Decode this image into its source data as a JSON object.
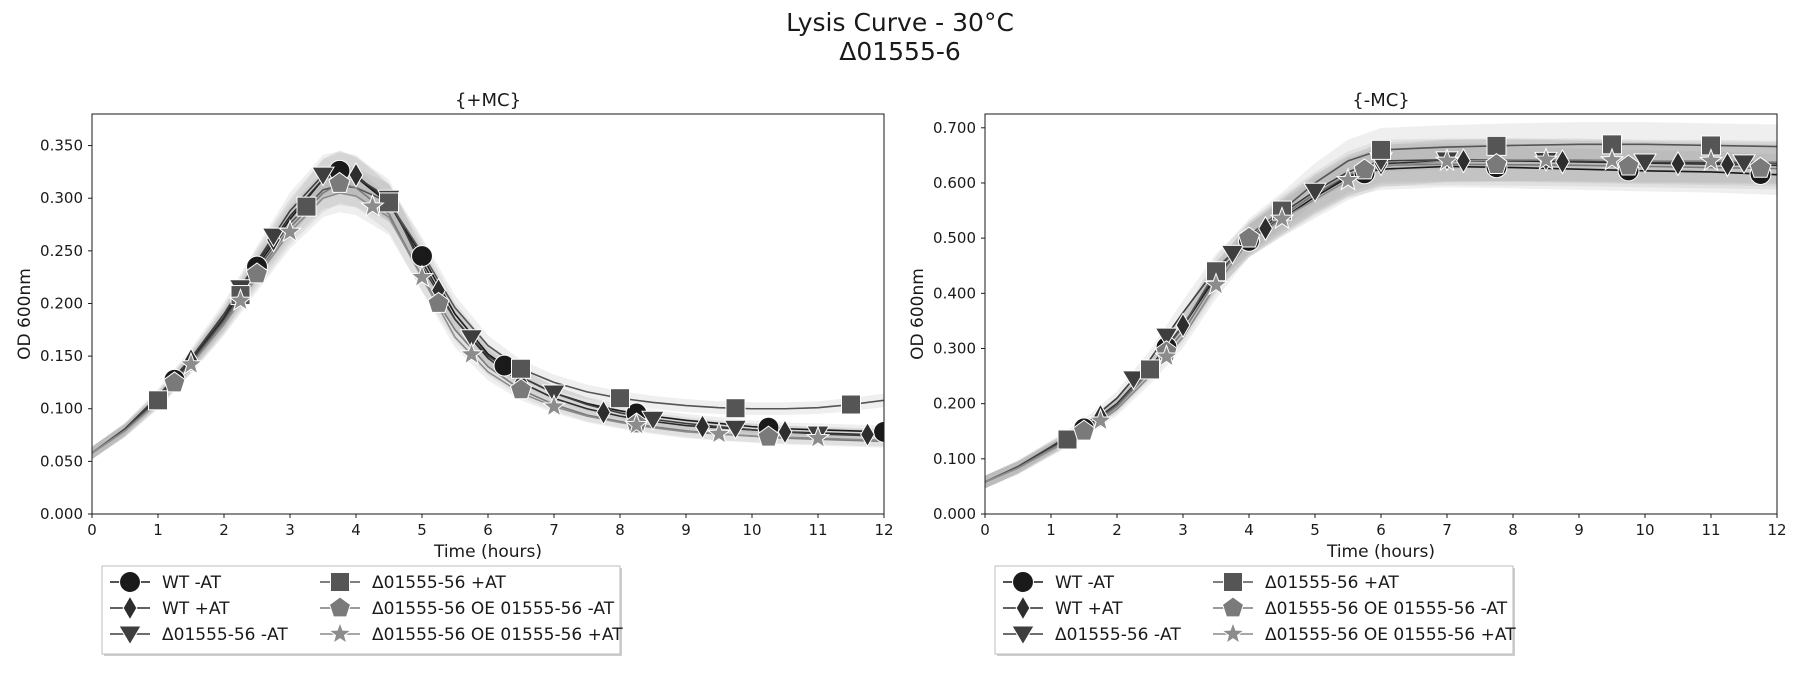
{
  "figure": {
    "title_line1": "Lysis Curve - 30°C",
    "title_line2": "Δ01555-6"
  },
  "chart_data": [
    {
      "type": "line",
      "title": "{+MC}",
      "xlabel": "Time (hours)",
      "ylabel": "OD 600nm",
      "xlim": [
        0,
        12
      ],
      "ylim": [
        0,
        0.38
      ],
      "xticks": [
        "0",
        "1",
        "2",
        "3",
        "4",
        "5",
        "6",
        "7",
        "8",
        "9",
        "10",
        "11",
        "12"
      ],
      "yticks": [
        "0.000",
        "0.050",
        "0.100",
        "0.150",
        "0.200",
        "0.250",
        "0.300",
        "0.350"
      ],
      "grid": false,
      "legend_position": "below-left",
      "series": [
        {
          "name": "WT -AT",
          "marker": "circle",
          "color": "#1a1a1a",
          "x": [
            0,
            0.5,
            1,
            1.5,
            2,
            2.5,
            3,
            3.5,
            3.75,
            4,
            4.5,
            5,
            5.5,
            6,
            6.5,
            7,
            7.5,
            8,
            8.5,
            9,
            9.5,
            10,
            10.5,
            11,
            11.5,
            12
          ],
          "y": [
            0.058,
            0.08,
            0.11,
            0.145,
            0.185,
            0.235,
            0.28,
            0.318,
            0.326,
            0.32,
            0.295,
            0.245,
            0.19,
            0.152,
            0.13,
            0.115,
            0.105,
            0.098,
            0.093,
            0.089,
            0.086,
            0.083,
            0.081,
            0.08,
            0.079,
            0.078
          ],
          "marker_x": [
            1.25,
            2.5,
            3.75,
            5,
            6.25,
            8.25,
            10.25,
            12
          ]
        },
        {
          "name": "WT +AT",
          "marker": "diamond",
          "color": "#2d2d2d",
          "x": [
            0,
            0.5,
            1,
            1.5,
            2,
            2.5,
            3,
            3.5,
            3.75,
            4,
            4.5,
            5,
            5.5,
            6,
            6.5,
            7,
            7.5,
            8,
            8.5,
            9,
            9.5,
            10,
            10.5,
            11,
            11.5,
            12
          ],
          "y": [
            0.058,
            0.08,
            0.11,
            0.146,
            0.187,
            0.238,
            0.283,
            0.318,
            0.324,
            0.322,
            0.296,
            0.24,
            0.185,
            0.148,
            0.125,
            0.11,
            0.1,
            0.093,
            0.088,
            0.084,
            0.082,
            0.08,
            0.078,
            0.077,
            0.076,
            0.075
          ],
          "marker_x": [
            1.5,
            2.75,
            4,
            5.25,
            6.5,
            7.75,
            9.25,
            10.5,
            11.75
          ]
        },
        {
          "name": "Δ01555-56 -AT",
          "marker": "triangle-down",
          "color": "#3e3e3e",
          "x": [
            0,
            0.5,
            1,
            1.5,
            2,
            2.5,
            3,
            3.5,
            3.75,
            4,
            4.5,
            5,
            5.5,
            6,
            6.5,
            7,
            7.5,
            8,
            8.5,
            9,
            9.5,
            10,
            10.5,
            11,
            11.5,
            12
          ],
          "y": [
            0.058,
            0.081,
            0.112,
            0.148,
            0.19,
            0.24,
            0.288,
            0.322,
            0.325,
            0.32,
            0.3,
            0.235,
            0.185,
            0.15,
            0.13,
            0.115,
            0.104,
            0.096,
            0.09,
            0.086,
            0.083,
            0.08,
            0.078,
            0.076,
            0.075,
            0.074
          ],
          "marker_x": [
            2.25,
            2.75,
            3.5,
            4.5,
            5.75,
            7,
            8.5,
            9.75,
            11
          ]
        },
        {
          "name": "Δ01555-56 +AT",
          "marker": "square",
          "color": "#555555",
          "x": [
            0,
            0.5,
            1,
            1.5,
            2,
            2.5,
            3,
            3.5,
            3.75,
            4,
            4.5,
            5,
            5.5,
            6,
            6.5,
            7,
            7.5,
            8,
            8.5,
            9,
            9.5,
            10,
            10.5,
            11,
            11.5,
            12
          ],
          "y": [
            0.058,
            0.08,
            0.108,
            0.144,
            0.184,
            0.232,
            0.276,
            0.308,
            0.312,
            0.31,
            0.296,
            0.248,
            0.196,
            0.16,
            0.138,
            0.125,
            0.116,
            0.11,
            0.106,
            0.103,
            0.101,
            0.1,
            0.1,
            0.101,
            0.104,
            0.108
          ],
          "marker_x": [
            1,
            2.25,
            3.25,
            4.5,
            6.5,
            8,
            9.75,
            11.5
          ]
        },
        {
          "name": "Δ01555-56 OE 01555-56 -AT",
          "marker": "pentagon",
          "color": "#7a7a7a",
          "x": [
            0,
            0.5,
            1,
            1.5,
            2,
            2.5,
            3,
            3.5,
            3.75,
            4,
            4.5,
            5,
            5.5,
            6,
            6.5,
            7,
            7.5,
            8,
            8.5,
            9,
            9.5,
            10,
            10.5,
            11,
            11.5,
            12
          ],
          "y": [
            0.058,
            0.079,
            0.107,
            0.142,
            0.182,
            0.228,
            0.272,
            0.305,
            0.314,
            0.31,
            0.285,
            0.225,
            0.175,
            0.14,
            0.118,
            0.104,
            0.094,
            0.088,
            0.083,
            0.079,
            0.076,
            0.074,
            0.072,
            0.071,
            0.07,
            0.069
          ],
          "marker_x": [
            1.25,
            2.5,
            3.75,
            5.25,
            6.5,
            8.25,
            10.25
          ]
        },
        {
          "name": "Δ01555-56 OE 01555-56 +AT",
          "marker": "star",
          "color": "#8c8c8c",
          "x": [
            0,
            0.5,
            1,
            1.5,
            2,
            2.5,
            3,
            3.5,
            3.75,
            4,
            4.5,
            5,
            5.5,
            6,
            6.5,
            7,
            7.5,
            8,
            8.5,
            9,
            9.5,
            10,
            10.5,
            11,
            11.5,
            12
          ],
          "y": [
            0.058,
            0.079,
            0.106,
            0.142,
            0.18,
            0.225,
            0.268,
            0.3,
            0.305,
            0.302,
            0.282,
            0.225,
            0.168,
            0.135,
            0.115,
            0.102,
            0.093,
            0.087,
            0.082,
            0.078,
            0.076,
            0.074,
            0.073,
            0.072,
            0.071,
            0.07
          ],
          "marker_x": [
            1.5,
            2.25,
            3,
            4.25,
            5,
            5.75,
            7,
            8.25,
            9.5,
            11
          ]
        }
      ]
    },
    {
      "type": "line",
      "title": "{-MC}",
      "xlabel": "Time (hours)",
      "ylabel": "OD 600nm",
      "xlim": [
        0,
        12
      ],
      "ylim": [
        0,
        0.725
      ],
      "xticks": [
        "0",
        "1",
        "2",
        "3",
        "4",
        "5",
        "6",
        "7",
        "8",
        "9",
        "10",
        "11",
        "12"
      ],
      "yticks": [
        "0.000",
        "0.100",
        "0.200",
        "0.300",
        "0.400",
        "0.500",
        "0.600",
        "0.700"
      ],
      "grid": false,
      "legend_position": "below-left",
      "series": [
        {
          "name": "WT -AT",
          "marker": "circle",
          "color": "#1a1a1a",
          "x": [
            0,
            0.5,
            1,
            1.5,
            2,
            2.5,
            3,
            3.5,
            4,
            4.5,
            5,
            5.5,
            6,
            7,
            8,
            9,
            10,
            11,
            12
          ],
          "y": [
            0.058,
            0.085,
            0.12,
            0.155,
            0.2,
            0.265,
            0.34,
            0.43,
            0.495,
            0.535,
            0.575,
            0.61,
            0.625,
            0.63,
            0.628,
            0.625,
            0.622,
            0.62,
            0.615
          ],
          "marker_x": [
            1.5,
            2.75,
            4,
            5.75,
            7.75,
            9.75,
            11.75
          ]
        },
        {
          "name": "WT +AT",
          "marker": "diamond",
          "color": "#2d2d2d",
          "x": [
            0,
            0.5,
            1,
            1.5,
            2,
            2.5,
            3,
            3.5,
            4,
            4.5,
            5,
            5.5,
            6,
            7,
            8,
            9,
            10,
            11,
            12
          ],
          "y": [
            0.058,
            0.085,
            0.12,
            0.155,
            0.2,
            0.265,
            0.342,
            0.432,
            0.495,
            0.54,
            0.58,
            0.612,
            0.635,
            0.64,
            0.64,
            0.638,
            0.636,
            0.634,
            0.632
          ],
          "marker_x": [
            1.75,
            3,
            4.25,
            6,
            7.25,
            8.75,
            10.5,
            11.25
          ]
        },
        {
          "name": "Δ01555-56 -AT",
          "marker": "triangle-down",
          "color": "#3e3e3e",
          "x": [
            0,
            0.5,
            1,
            1.5,
            2,
            2.5,
            3,
            3.5,
            4,
            4.5,
            5,
            5.5,
            6,
            7,
            8,
            9,
            10,
            11,
            12
          ],
          "y": [
            0.058,
            0.086,
            0.122,
            0.16,
            0.21,
            0.28,
            0.365,
            0.445,
            0.5,
            0.545,
            0.585,
            0.62,
            0.64,
            0.642,
            0.642,
            0.64,
            0.638,
            0.637,
            0.636
          ],
          "marker_x": [
            2.25,
            2.75,
            3.75,
            5,
            6,
            7,
            8.5,
            10,
            11.5
          ]
        },
        {
          "name": "Δ01555-56 +AT",
          "marker": "square",
          "color": "#555555",
          "x": [
            0,
            0.5,
            1,
            1.5,
            2,
            2.5,
            3,
            3.5,
            4,
            4.5,
            5,
            5.5,
            6,
            7,
            8,
            9,
            10,
            11,
            12
          ],
          "y": [
            0.058,
            0.084,
            0.118,
            0.152,
            0.198,
            0.262,
            0.34,
            0.44,
            0.505,
            0.55,
            0.6,
            0.64,
            0.66,
            0.665,
            0.668,
            0.67,
            0.67,
            0.668,
            0.666
          ],
          "marker_x": [
            1.25,
            2.5,
            3.5,
            4.5,
            6,
            7.75,
            9.5,
            11
          ]
        },
        {
          "name": "Δ01555-56 OE 01555-56 -AT",
          "marker": "pentagon",
          "color": "#7a7a7a",
          "x": [
            0,
            0.5,
            1,
            1.5,
            2,
            2.5,
            3,
            3.5,
            4,
            4.5,
            5,
            5.5,
            6,
            7,
            8,
            9,
            10,
            11,
            12
          ],
          "y": [
            0.058,
            0.084,
            0.118,
            0.15,
            0.195,
            0.258,
            0.33,
            0.425,
            0.5,
            0.54,
            0.58,
            0.615,
            0.632,
            0.634,
            0.633,
            0.632,
            0.63,
            0.628,
            0.626
          ],
          "marker_x": [
            1.5,
            2.75,
            4,
            5.75,
            7.75,
            9.75,
            11.75
          ]
        },
        {
          "name": "Δ01555-56 OE 01555-56 +AT",
          "marker": "star",
          "color": "#8c8c8c",
          "x": [
            0,
            0.5,
            1,
            1.5,
            2,
            2.5,
            3,
            3.5,
            4,
            4.5,
            5,
            5.5,
            6,
            7,
            8,
            9,
            10,
            11,
            12
          ],
          "y": [
            0.058,
            0.083,
            0.116,
            0.148,
            0.19,
            0.25,
            0.32,
            0.415,
            0.495,
            0.535,
            0.57,
            0.605,
            0.63,
            0.64,
            0.642,
            0.642,
            0.64,
            0.64,
            0.638
          ],
          "marker_x": [
            1.75,
            2.75,
            3.5,
            4.5,
            5.5,
            7,
            8.5,
            9.5,
            11
          ]
        }
      ]
    }
  ]
}
